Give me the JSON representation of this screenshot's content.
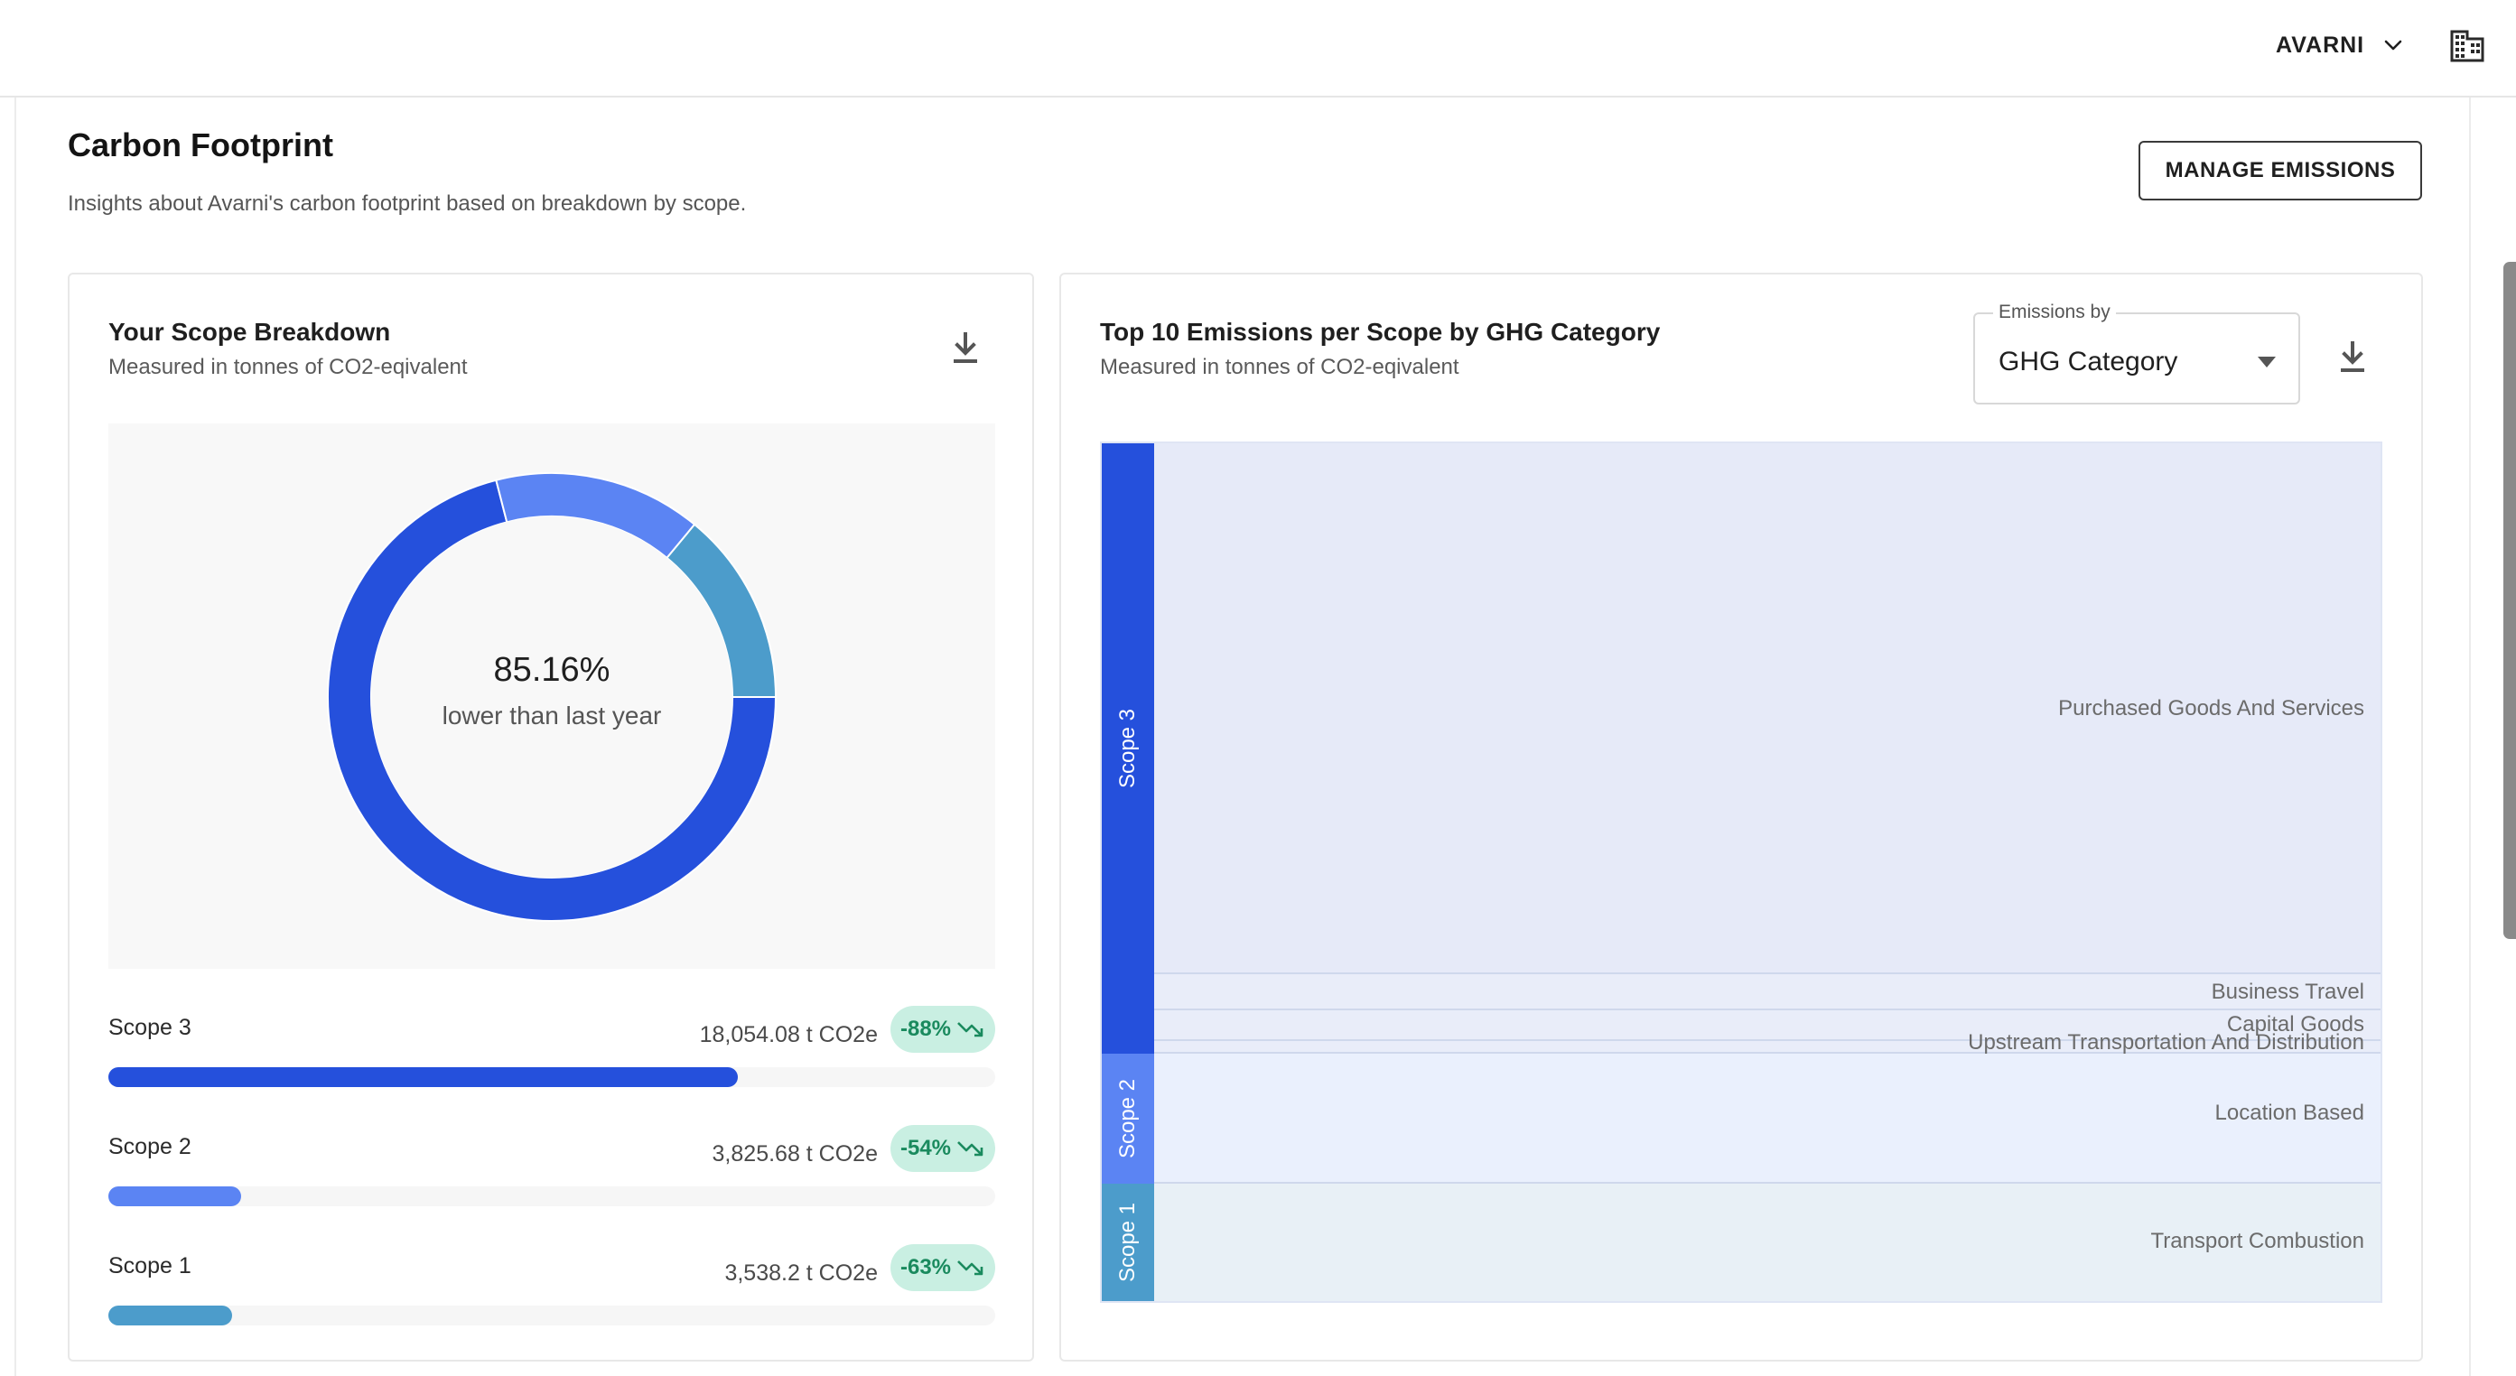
{
  "topbar": {
    "org_name": "AVARNI",
    "chevron_icon": "chevron-down-icon",
    "building_icon": "building-icon"
  },
  "page": {
    "title": "Carbon Footprint",
    "subtitle": "Insights about Avarni's carbon footprint based on breakdown by scope.",
    "manage_button": "MANAGE EMISSIONS"
  },
  "scope_card": {
    "title": "Your Scope Breakdown",
    "subtitle": "Measured in tonnes of CO2-eqivalent",
    "download_icon": "download-icon",
    "center_value": "85.16%",
    "center_caption": "lower than last year",
    "scopes": [
      {
        "label": "Scope 3",
        "value": "18,054.08 t CO2e",
        "change": "-88%",
        "share": 0.71,
        "color": "#2550dc"
      },
      {
        "label": "Scope 2",
        "value": "3,825.68 t CO2e",
        "change": "-54%",
        "share": 0.15,
        "color": "#5b84f3"
      },
      {
        "label": "Scope 1",
        "value": "3,538.2 t CO2e",
        "change": "-63%",
        "share": 0.14,
        "color": "#4c9ccb"
      }
    ]
  },
  "ghg_card": {
    "title": "Top 10 Emissions per Scope by GHG Category",
    "subtitle": "Measured in tonnes of CO2-eqivalent",
    "select_legend": "Emissions by",
    "select_value": "GHG Category",
    "download_icon": "download-icon",
    "treemap": {
      "scopes": [
        {
          "label": "Scope 3",
          "color": "#2550dc"
        },
        {
          "label": "Scope 2",
          "color": "#5b84f3"
        },
        {
          "label": "Scope 1",
          "color": "#4c9ccb"
        }
      ],
      "categories": [
        {
          "label": "Purchased Goods And Services",
          "scope": "Scope 3"
        },
        {
          "label": "Business Travel",
          "scope": "Scope 3"
        },
        {
          "label": "Capital Goods",
          "scope": "Scope 3"
        },
        {
          "label": "Upstream Transportation And Distribution",
          "scope": "Scope 3"
        },
        {
          "label": "Location Based",
          "scope": "Scope 2"
        },
        {
          "label": "Transport Combustion",
          "scope": "Scope 1"
        }
      ]
    }
  },
  "colors": {
    "scope3": "#2550dc",
    "scope2": "#5b84f3",
    "scope1": "#4c9ccb",
    "badge_bg": "#c9efe2",
    "badge_text": "#1a8a5e"
  }
}
